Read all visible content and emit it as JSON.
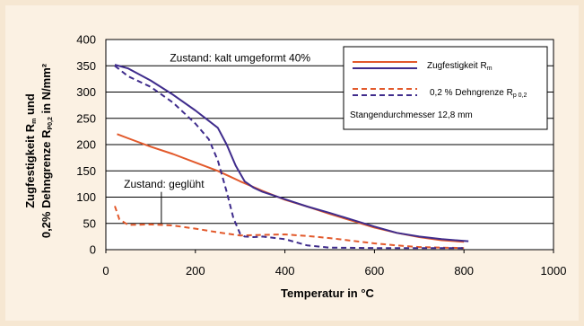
{
  "chart_data": {
    "type": "line",
    "xlabel": "Temperatur in °C",
    "ylabel_line1": {
      "text": "Zugfestigkeit R",
      "sub": "m",
      "after": " und"
    },
    "ylabel_line2": {
      "text": "0,2% Dehngrenze R",
      "sub": "P0,2",
      "after": " in N/mm²"
    },
    "xlim": [
      0,
      1000
    ],
    "ylim": [
      0,
      400
    ],
    "xticks": [
      0,
      200,
      400,
      600,
      800,
      1000
    ],
    "yticks": [
      0,
      50,
      100,
      150,
      200,
      250,
      300,
      350,
      400
    ],
    "grid": "horizontal",
    "legend_position": "top-right",
    "legend": [
      {
        "label": "Zugfestigkeit R",
        "sub": "m",
        "style": "solid"
      },
      {
        "label": "0,2 % Dehngrenze R",
        "sub": "p 0,2",
        "style": "dashed"
      }
    ],
    "legend_note": "Stangendurchmesser 12,8 mm",
    "annotations": [
      {
        "text": "Zustand: kalt umgeformt 40%",
        "x": 300,
        "y": 358
      },
      {
        "text": "Zustand: geglüht",
        "x": 130,
        "y": 118
      }
    ],
    "colors": {
      "orange": "#e2592b",
      "purple": "#3f2c8c"
    },
    "series": [
      {
        "legend_ref": 0,
        "color": "orange",
        "style": "solid",
        "x": [
          25,
          50,
          100,
          150,
          200,
          250,
          300,
          350,
          400,
          450,
          500,
          550,
          600,
          650,
          700,
          750,
          800
        ],
        "y": [
          220,
          212,
          196,
          182,
          166,
          150,
          130,
          112,
          95,
          82,
          68,
          55,
          42,
          32,
          24,
          18,
          15
        ]
      },
      {
        "legend_ref": 0,
        "color": "purple",
        "style": "solid",
        "x": [
          20,
          50,
          100,
          150,
          200,
          250,
          270,
          290,
          310,
          330,
          350,
          400,
          450,
          500,
          550,
          600,
          650,
          700,
          750,
          810
        ],
        "y": [
          352,
          345,
          322,
          295,
          265,
          232,
          200,
          160,
          130,
          118,
          110,
          96,
          82,
          70,
          57,
          44,
          32,
          25,
          20,
          16
        ]
      },
      {
        "legend_ref": 1,
        "color": "orange",
        "style": "dashed",
        "x": [
          20,
          30,
          50,
          100,
          150,
          200,
          250,
          300,
          350,
          400,
          450,
          500,
          550,
          600,
          650,
          700,
          750,
          800
        ],
        "y": [
          83,
          58,
          47,
          48,
          46,
          40,
          33,
          27,
          28,
          29,
          26,
          22,
          17,
          12,
          8,
          5,
          4,
          3
        ]
      },
      {
        "legend_ref": 1,
        "color": "purple",
        "style": "dashed",
        "x": [
          20,
          50,
          100,
          150,
          200,
          230,
          250,
          270,
          285,
          300,
          310,
          330,
          350,
          400,
          450,
          500,
          600,
          700,
          800
        ],
        "y": [
          350,
          330,
          310,
          280,
          240,
          210,
          170,
          110,
          60,
          30,
          25,
          24,
          25,
          20,
          8,
          4,
          3,
          3,
          3
        ]
      }
    ]
  }
}
